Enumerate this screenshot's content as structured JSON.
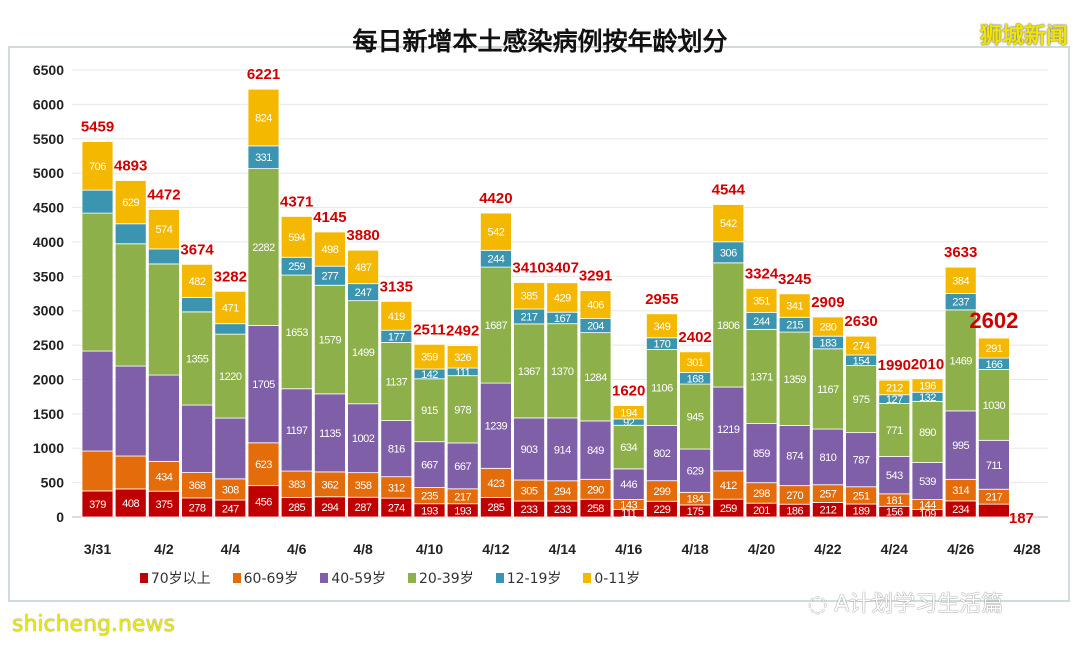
{
  "chart_data": {
    "type": "bar",
    "stacked": true,
    "title": "每日新增本土感染病例按年龄划分",
    "categories": [
      "3/31",
      "4/1",
      "4/2",
      "4/3",
      "4/4",
      "4/5",
      "4/6",
      "4/7",
      "4/8",
      "4/9",
      "4/10",
      "4/11",
      "4/12",
      "4/13",
      "4/14",
      "4/15",
      "4/16",
      "4/17",
      "4/18",
      "4/19",
      "4/20",
      "4/21",
      "4/22",
      "4/23",
      "4/24",
      "4/25",
      "4/26",
      "4/27"
    ],
    "x_tick_labels": [
      "3/31",
      "4/2",
      "4/4",
      "4/6",
      "4/8",
      "4/10",
      "4/12",
      "4/14",
      "4/16",
      "4/18",
      "4/20",
      "4/22",
      "4/24",
      "4/26",
      "4/28"
    ],
    "y_ticks": [
      0,
      500,
      1000,
      1500,
      2000,
      2500,
      3000,
      3500,
      4000,
      4500,
      5000,
      5500,
      6000,
      6500
    ],
    "ylim": [
      0,
      6500
    ],
    "grid": true,
    "legend_position": "bottom",
    "totals": [
      5459,
      4893,
      4472,
      3674,
      3282,
      6221,
      4371,
      4145,
      3880,
      3135,
      2511,
      2492,
      4420,
      3410,
      3407,
      3291,
      1620,
      2955,
      2402,
      4544,
      3324,
      3245,
      2909,
      2630,
      1990,
      2010,
      3633,
      2602
    ],
    "series": [
      {
        "name": "70岁以上",
        "color": "#c00000",
        "values": [
          379,
          408,
          375,
          278,
          247,
          456,
          285,
          294,
          287,
          274,
          193,
          193,
          285,
          233,
          233,
          258,
          111,
          229,
          175,
          259,
          201,
          186,
          212,
          189,
          156,
          109,
          234,
          187
        ],
        "hidden_labels": []
      },
      {
        "name": "60-69岁",
        "color": "#e46c0a",
        "values": [
          580,
          479,
          434,
          368,
          308,
          623,
          383,
          362,
          358,
          312,
          235,
          217,
          423,
          305,
          294,
          290,
          143,
          299,
          184,
          412,
          298,
          270,
          257,
          251,
          181,
          144,
          314,
          217
        ],
        "hidden_labels": [
          0,
          1
        ]
      },
      {
        "name": "40-59岁",
        "color": "#7f5fa8",
        "values": [
          1454,
          1308,
          1255,
          982,
          884,
          1705,
          1197,
          1135,
          1002,
          816,
          667,
          667,
          1239,
          903,
          914,
          849,
          446,
          802,
          629,
          1219,
          859,
          874,
          810,
          787,
          543,
          539,
          995,
          711
        ],
        "hidden_labels": [
          0,
          1,
          2,
          3,
          4
        ]
      },
      {
        "name": "20-39岁",
        "color": "#8db04a",
        "values": [
          2006,
          1778,
          1616,
          1355,
          1220,
          2282,
          1653,
          1579,
          1499,
          1137,
          915,
          978,
          1687,
          1367,
          1370,
          1284,
          634,
          1106,
          945,
          1806,
          1371,
          1359,
          1167,
          975,
          771,
          890,
          1469,
          1030
        ],
        "hidden_labels": [
          0,
          1,
          2
        ]
      },
      {
        "name": "12-19岁",
        "color": "#3b95b0",
        "values": [
          334,
          291,
          218,
          209,
          152,
          331,
          259,
          277,
          247,
          177,
          142,
          111,
          244,
          217,
          167,
          204,
          92,
          170,
          168,
          306,
          244,
          215,
          183,
          154,
          127,
          132,
          237,
          166
        ],
        "hidden_labels": [
          0,
          1,
          2,
          3,
          4
        ]
      },
      {
        "name": "0-11岁",
        "color": "#f5b800",
        "values": [
          706,
          629,
          574,
          482,
          471,
          824,
          594,
          498,
          487,
          419,
          359,
          326,
          542,
          385,
          429,
          406,
          194,
          349,
          301,
          542,
          351,
          341,
          280,
          274,
          212,
          196,
          384,
          291
        ],
        "hidden_labels": []
      }
    ]
  },
  "watermarks": {
    "top_right": "狮城新闻",
    "bottom_left": "shicheng.news",
    "wechat": "A计划学习生活篇"
  }
}
